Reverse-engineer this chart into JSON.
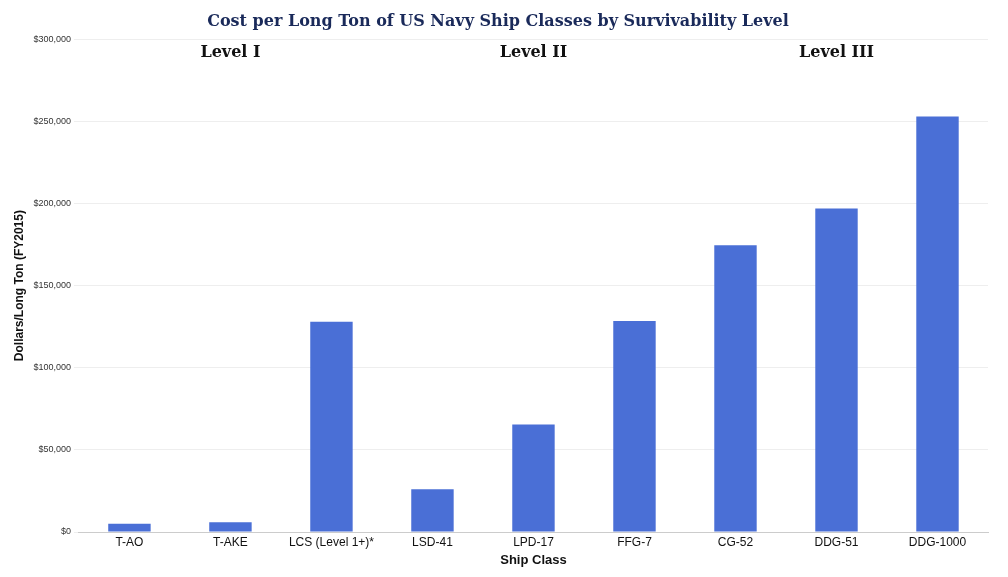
{
  "chart_data": {
    "type": "bar",
    "title": "Cost per Long Ton of US Navy Ship Classes by Survivability Level",
    "xlabel": "Ship Class",
    "ylabel": "Dollars/Long Ton (FY2015)",
    "categories": [
      "T-AO",
      "T-AKE",
      "LCS (Level 1+)*",
      "LSD-41",
      "LPD-17",
      "FFG-7",
      "CG-52",
      "DDG-51",
      "DDG-1000"
    ],
    "values": [
      5000,
      6000,
      128000,
      26000,
      65500,
      128500,
      174500,
      197000,
      253000
    ],
    "color": "#4a6fd6",
    "ylim": [
      0,
      300000
    ],
    "yticks": [
      {
        "value": 0,
        "label": "$0"
      },
      {
        "value": 50000,
        "label": "$50,000"
      },
      {
        "value": 100000,
        "label": "$100,000"
      },
      {
        "value": 150000,
        "label": "$150,000"
      },
      {
        "value": 200000,
        "label": "$200,000"
      },
      {
        "value": 250000,
        "label": "$250,000"
      },
      {
        "value": 300000,
        "label": "$300,000"
      }
    ],
    "grid": "y",
    "annotations": [
      "Level I",
      "Level II",
      "Level III"
    ]
  }
}
